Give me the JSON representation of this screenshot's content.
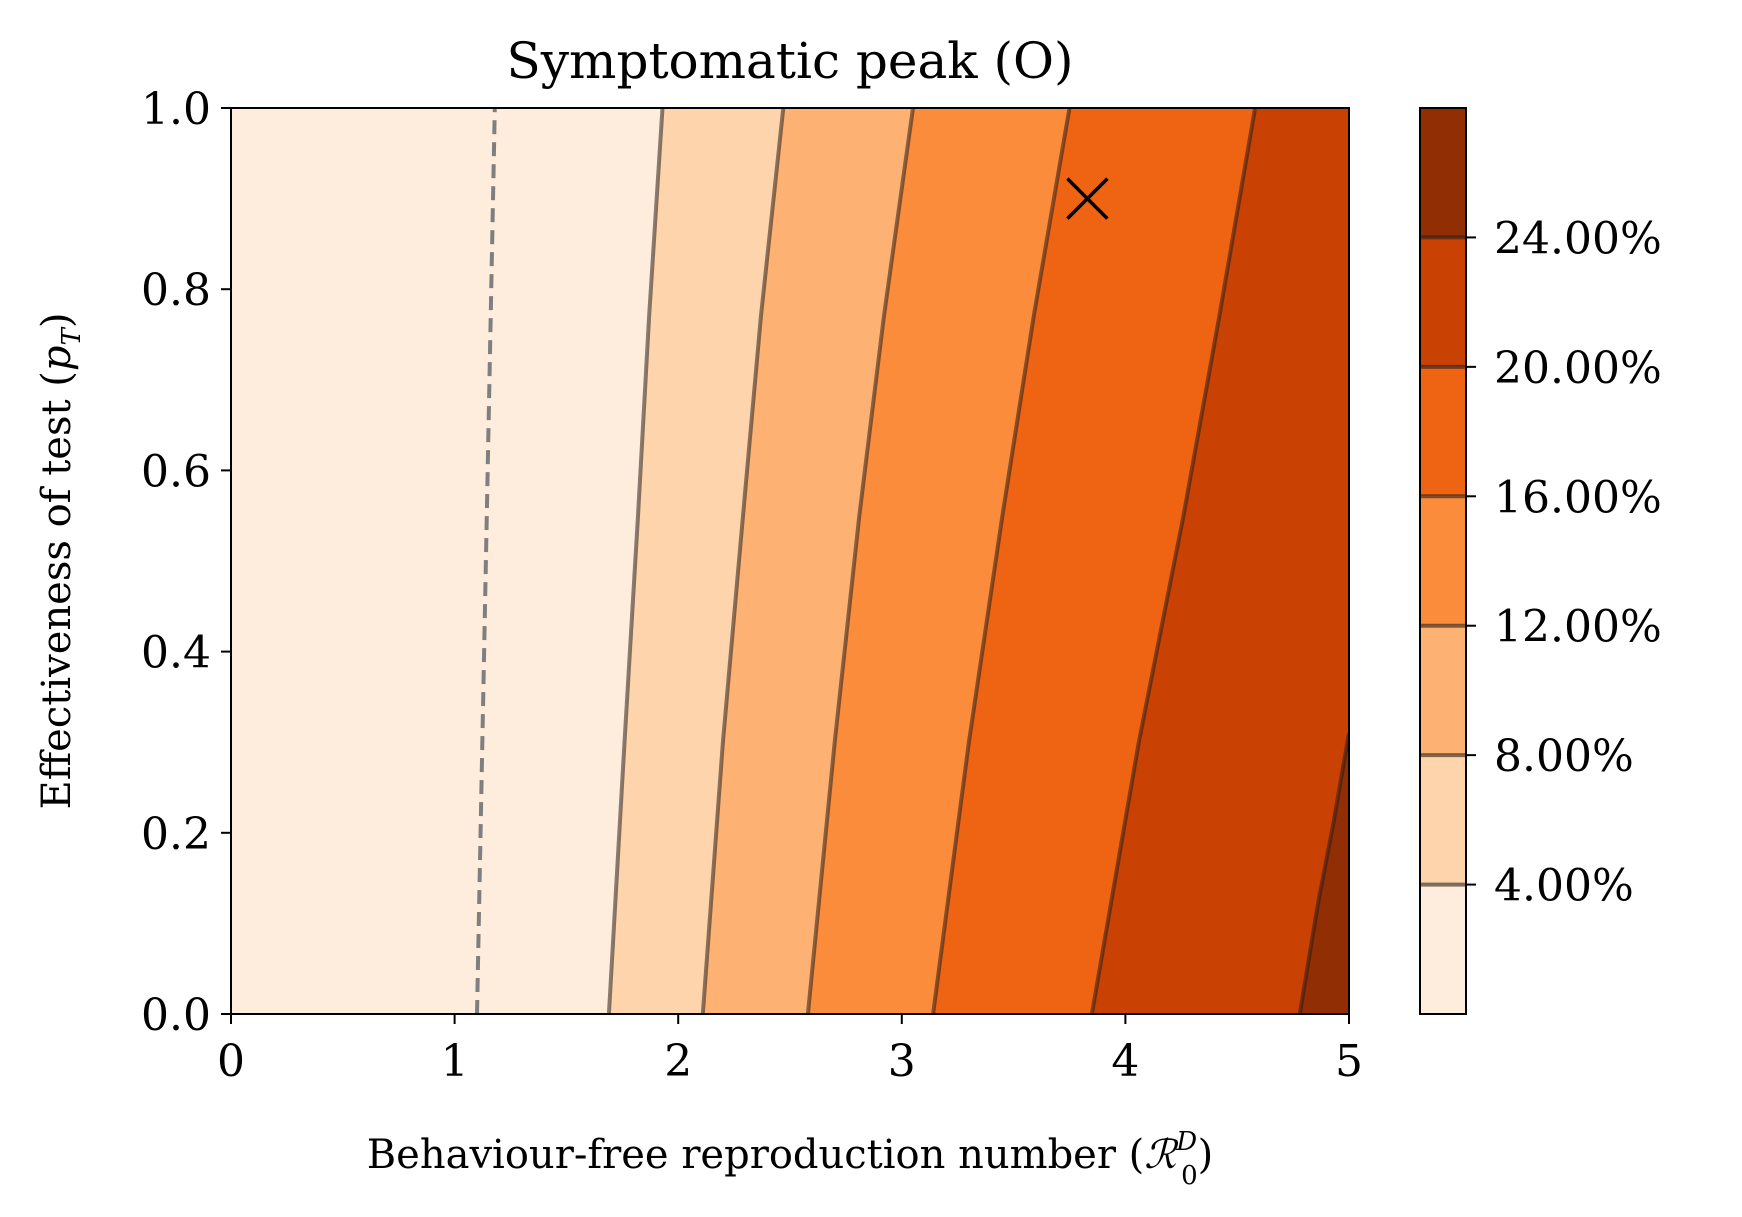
{
  "chart_data": {
    "type": "contour",
    "title": "Symptomatic peak (O)",
    "xlabel": "Behaviour-free reproduction number (",
    "xlabel_symbol": "ℛ",
    "xlabel_sub": "0",
    "xlabel_sup": "D",
    "xlabel_end": ")",
    "ylabel": "Effectiveness of test (",
    "ylabel_symbol": "p",
    "ylabel_sub": "T",
    "ylabel_end": ")",
    "xlim": [
      0,
      5
    ],
    "ylim": [
      0,
      1
    ],
    "xticks": [
      0,
      1,
      2,
      3,
      4,
      5
    ],
    "xtick_labels": [
      "0",
      "1",
      "2",
      "3",
      "4",
      "5"
    ],
    "yticks": [
      0,
      0.2,
      0.4,
      0.6,
      0.8,
      1.0
    ],
    "ytick_labels": [
      "0.0",
      "0.2",
      "0.4",
      "0.6",
      "0.8",
      "1.0"
    ],
    "colorbar": {
      "range": [
        0,
        28
      ],
      "levels": [
        4,
        8,
        12,
        16,
        20,
        24
      ],
      "labels": [
        "4.00%",
        "8.00%",
        "12.00%",
        "16.00%",
        "20.00%",
        "24.00%"
      ]
    },
    "fill_colors": [
      "#feeddc",
      "#fdd4ab",
      "#fdb274",
      "#fb8c3b",
      "#ee6413",
      "#c94203",
      "#922e04"
    ],
    "contour_lines": [
      {
        "level": 4,
        "points": [
          [
            1.69,
            0
          ],
          [
            1.76,
            0.3
          ],
          [
            1.82,
            0.55
          ],
          [
            1.87,
            0.77
          ],
          [
            1.93,
            1.0
          ]
        ]
      },
      {
        "level": 8,
        "points": [
          [
            2.11,
            0
          ],
          [
            2.2,
            0.3
          ],
          [
            2.29,
            0.55
          ],
          [
            2.37,
            0.77
          ],
          [
            2.47,
            1.0
          ]
        ]
      },
      {
        "level": 12,
        "points": [
          [
            2.58,
            0
          ],
          [
            2.7,
            0.3
          ],
          [
            2.81,
            0.55
          ],
          [
            2.92,
            0.77
          ],
          [
            3.05,
            1.0
          ]
        ]
      },
      {
        "level": 16,
        "points": [
          [
            3.14,
            0
          ],
          [
            3.3,
            0.3
          ],
          [
            3.45,
            0.55
          ],
          [
            3.59,
            0.77
          ],
          [
            3.75,
            1.0
          ]
        ]
      },
      {
        "level": 20,
        "points": [
          [
            3.85,
            0
          ],
          [
            4.06,
            0.3
          ],
          [
            4.26,
            0.55
          ],
          [
            4.42,
            0.77
          ],
          [
            4.58,
            1.0
          ]
        ]
      },
      {
        "level": 24,
        "points": [
          [
            4.78,
            0
          ],
          [
            4.86,
            0.12
          ],
          [
            4.93,
            0.21
          ],
          [
            5.0,
            0.31
          ]
        ]
      }
    ],
    "threshold_line": {
      "style": "dashed",
      "points": [
        [
          1.1,
          0
        ],
        [
          1.14,
          0.5
        ],
        [
          1.18,
          1.0
        ]
      ]
    },
    "marker": {
      "symbol": "x",
      "x": 3.83,
      "y": 0.9
    }
  }
}
